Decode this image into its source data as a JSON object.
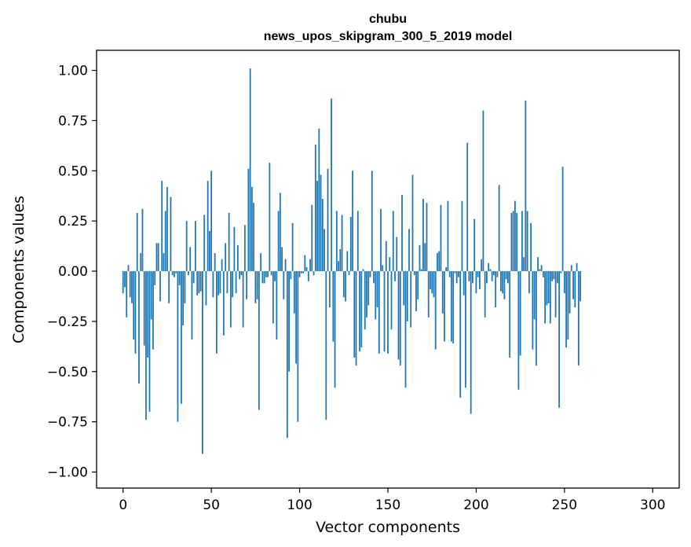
{
  "chart_data": {
    "type": "bar",
    "title": "chubu",
    "subtitle": "news_upos_skipgram_300_5_2019 model",
    "xlabel": "Vector components",
    "ylabel": "Components values",
    "xlim": [
      -15,
      315
    ],
    "ylim": [
      -1.08,
      1.1
    ],
    "x_ticks": [
      0,
      50,
      100,
      150,
      200,
      250,
      300
    ],
    "y_ticks": [
      -1.0,
      -0.75,
      -0.5,
      -0.25,
      0.0,
      0.25,
      0.5,
      0.75,
      1.0
    ],
    "x_tick_labels": [
      "0",
      "50",
      "100",
      "150",
      "200",
      "250",
      "300"
    ],
    "y_tick_labels": [
      "−1.00",
      "−0.75",
      "−0.50",
      "−0.25",
      "0.00",
      "0.25",
      "0.50",
      "0.75",
      "1.00"
    ],
    "bar_color": "#1f77b4",
    "values": [
      -0.11,
      -0.08,
      -0.23,
      0.03,
      -0.13,
      -0.16,
      -0.34,
      -0.41,
      0.29,
      -0.56,
      0.09,
      0.31,
      -0.37,
      -0.74,
      -0.43,
      -0.7,
      -0.24,
      -0.39,
      -0.07,
      0.14,
      0.14,
      -0.15,
      0.45,
      0.09,
      0.3,
      0.42,
      -0.16,
      0.37,
      -0.02,
      -0.03,
      -0.01,
      -0.75,
      -0.07,
      -0.66,
      -0.27,
      -0.16,
      0.25,
      -0.02,
      0.12,
      -0.34,
      -0.06,
      0.25,
      -0.12,
      -0.11,
      -0.1,
      -0.91,
      0.28,
      -0.17,
      0.45,
      0.2,
      0.5,
      -0.13,
      0.09,
      -0.41,
      -0.12,
      -0.11,
      0.06,
      -0.32,
      0.14,
      -0.11,
      0.29,
      -0.28,
      -0.13,
      0.22,
      -0.11,
      0.13,
      -0.04,
      -0.02,
      -0.28,
      0.23,
      -0.14,
      0.51,
      1.01,
      0.42,
      0.34,
      -0.16,
      -0.14,
      -0.69,
      0.09,
      -0.06,
      -0.06,
      -0.03,
      -0.03,
      0.54,
      -0.02,
      -0.26,
      -0.05,
      -0.34,
      0.3,
      0.39,
      0.12,
      -0.14,
      0.06,
      -0.83,
      -0.5,
      -0.04,
      0.24,
      -0.21,
      -0.46,
      -0.75,
      -0.03,
      -0.01,
      -0.01,
      0.08,
      0.02,
      -0.05,
      0.06,
      0.33,
      -0.02,
      0.63,
      0.45,
      0.71,
      0.48,
      0.36,
      0.21,
      -0.74,
      0.51,
      -0.18,
      0.86,
      -0.35,
      -0.58,
      0.3,
      0.05,
      0.11,
      0.28,
      -0.13,
      -0.15,
      0.1,
      -0.02,
      0.27,
      0.5,
      -0.43,
      -0.47,
      0.3,
      -0.4,
      -0.38,
      0.01,
      -0.29,
      -0.23,
      -0.17,
      -0.03,
      0.5,
      -0.06,
      -0.24,
      -0.18,
      -0.41,
      0.31,
      0.03,
      -0.4,
      0.15,
      -0.41,
      0.07,
      -0.29,
      0.3,
      -0.05,
      0.17,
      -0.44,
      -0.47,
      0.38,
      -0.17,
      -0.58,
      -0.25,
      0.21,
      -0.28,
      0.48,
      -0.02,
      -0.2,
      -0.14,
      0.13,
      0.01,
      0.36,
      0.14,
      0.34,
      -0.23,
      -0.09,
      -0.11,
      -0.13,
      -0.39,
      0.09,
      0.1,
      0.33,
      -0.21,
      -0.35,
      0.02,
      0.35,
      -0.03,
      -0.35,
      -0.36,
      -0.01,
      -0.06,
      -0.03,
      -0.63,
      0.35,
      -0.12,
      -0.58,
      0.64,
      -0.05,
      -0.71,
      -0.06,
      0.26,
      -0.11,
      -0.03,
      -0.09,
      0.06,
      0.8,
      -0.23,
      -0.06,
      0.04,
      0.01,
      -0.05,
      -0.02,
      -0.18,
      -0.03,
      0.43,
      -0.1,
      -0.11,
      -0.14,
      -0.04,
      -0.06,
      -0.43,
      0.29,
      0.3,
      0.35,
      0.29,
      -0.59,
      -0.42,
      0.3,
      0.07,
      0.85,
      0.3,
      -0.11,
      0.24,
      -0.39,
      -0.24,
      -0.47,
      0.07,
      0.01,
      0.03,
      -0.03,
      -0.26,
      -0.17,
      -0.16,
      -0.26,
      -0.05,
      -0.04,
      -0.23,
      -0.06,
      -0.68,
      -0.01,
      0.52,
      -0.11,
      -0.38,
      -0.34,
      -0.21,
      0.03,
      -0.14,
      -0.18,
      0.04,
      -0.47,
      -0.15
    ]
  }
}
